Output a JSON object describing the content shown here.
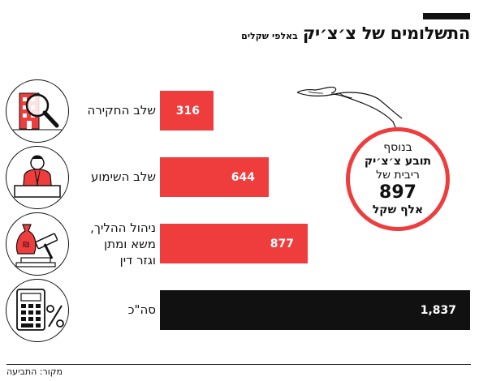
{
  "title": "התשלומים של צ׳צ׳יק",
  "subtitle": "באלפי שקלים",
  "chart_data": {
    "type": "bar",
    "orientation": "horizontal",
    "title": "התשלומים של צ׳צ׳יק",
    "subtitle": "באלפי שקלים",
    "categories": [
      "שלב החקירה",
      "שלב השימוע",
      "ניהול ההליך, משא ומתן וגזר דין",
      "סה\"כ"
    ],
    "category_lines": [
      [
        "שלב החקירה"
      ],
      [
        "שלב השימוע"
      ],
      [
        "ניהול ההליך,",
        "משא ומתן",
        "וגזר דין"
      ],
      [
        "סה\"כ"
      ]
    ],
    "values": [
      316,
      644,
      877,
      1837
    ],
    "value_labels": [
      "316",
      "644",
      "877",
      "1,837"
    ],
    "bar_colors": [
      "#ef3c3c",
      "#ef3c3c",
      "#ef3c3c",
      "#111111"
    ],
    "icons": [
      "magnifier-building-icon",
      "witness-person-icon",
      "money-sack-gavel-icon",
      "calculator-percent-icon"
    ],
    "xlim": [
      0,
      1837
    ]
  },
  "note": {
    "line1": "בנוסף",
    "line2": "תובע צ׳צ׳יק",
    "line3": "ריבית של",
    "amount": "897",
    "unit": "אלף שקל",
    "border_color": "#ef3c3c"
  },
  "source": "מקור: התביעה"
}
